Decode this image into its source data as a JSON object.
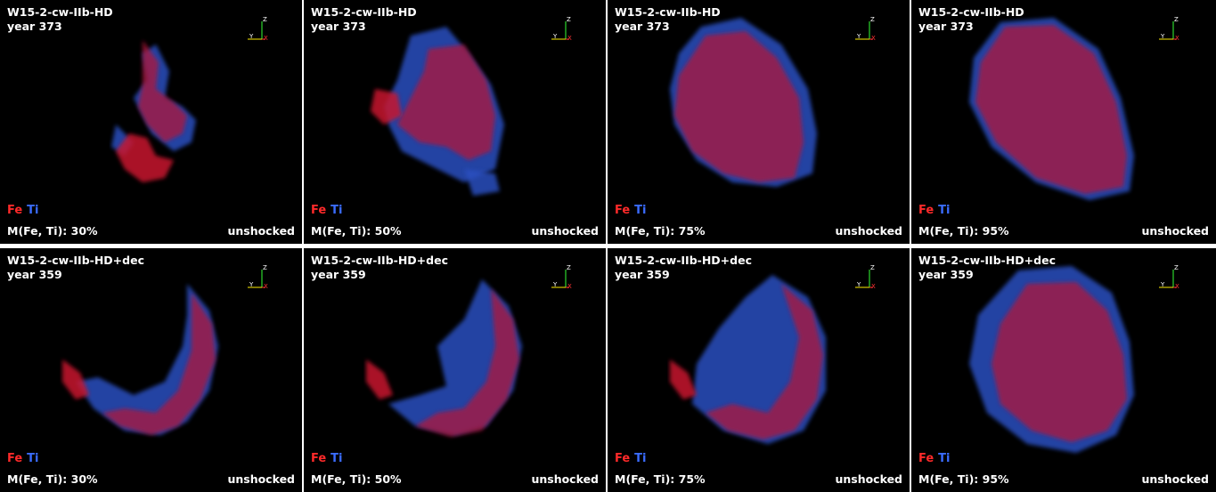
{
  "colors": {
    "background": "#000000",
    "fe": "#ff2a2a",
    "ti": "#3a6cff",
    "axis_x": "#ff3333",
    "axis_y": "#ffee00",
    "axis_z": "#33ff33"
  },
  "legend": {
    "fe": "Fe",
    "ti": "Ti"
  },
  "axes_labels": {
    "x": "X",
    "y": "Y",
    "z": "Z"
  },
  "rows": [
    {
      "model": "W15-2-cw-IIb-HD",
      "year": "year 373",
      "panels": [
        {
          "mass": "M(Fe, Ti): 30%",
          "state": "unshocked"
        },
        {
          "mass": "M(Fe, Ti): 50%",
          "state": "unshocked"
        },
        {
          "mass": "M(Fe, Ti): 75%",
          "state": "unshocked"
        },
        {
          "mass": "M(Fe, Ti): 95%",
          "state": "unshocked"
        }
      ]
    },
    {
      "model": "W15-2-cw-IIb-HD+dec",
      "year": "year 359",
      "panels": [
        {
          "mass": "M(Fe, Ti): 30%",
          "state": "unshocked"
        },
        {
          "mass": "M(Fe, Ti): 50%",
          "state": "unshocked"
        },
        {
          "mass": "M(Fe, Ti): 75%",
          "state": "unshocked"
        },
        {
          "mass": "M(Fe, Ti): 95%",
          "state": "unshocked"
        }
      ]
    }
  ]
}
